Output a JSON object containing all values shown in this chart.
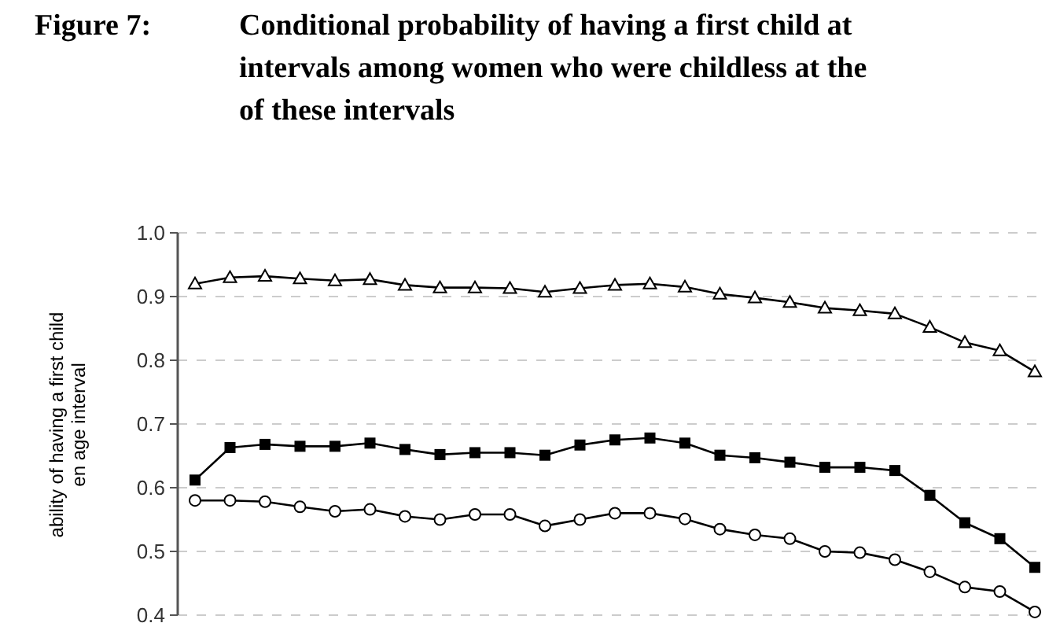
{
  "chart_data": {
    "type": "line",
    "title": "Conditional probability of having a first child at\nintervals among women who were childless at the\nof these intervals",
    "ylabel": "ability of having a first child\nen age interval",
    "annotations": [
      "Figure 7:"
    ],
    "categories": [
      null,
      null,
      null,
      null,
      null,
      null,
      null,
      null,
      null,
      null,
      null,
      null,
      null,
      null,
      null,
      null,
      null,
      null,
      null,
      null,
      null,
      null,
      null,
      null,
      null
    ],
    "ylim": [
      0.4,
      1.0
    ],
    "yticks": [
      {
        "value": 0.4,
        "label": "0.4"
      },
      {
        "value": 0.5,
        "label": "0.5"
      },
      {
        "value": 0.6,
        "label": "0.6"
      },
      {
        "value": 0.7,
        "label": "0.7"
      },
      {
        "value": 0.8,
        "label": "0.8"
      },
      {
        "value": 0.9,
        "label": "0.9"
      },
      {
        "value": 1.0,
        "label": "1.0"
      }
    ],
    "grid": "y",
    "line_style": "solid",
    "series": [
      {
        "color": "#000000",
        "marker": "triangle",
        "values": [
          0.92,
          0.93,
          0.932,
          0.928,
          0.925,
          0.927,
          0.918,
          0.914,
          0.914,
          0.913,
          0.907,
          0.913,
          0.918,
          0.92,
          0.915,
          0.904,
          0.898,
          0.891,
          0.882,
          0.878,
          0.873,
          0.852,
          0.828,
          0.815,
          0.782
        ]
      },
      {
        "color": "#000000",
        "marker": "square",
        "values": [
          0.612,
          0.663,
          0.668,
          0.665,
          0.665,
          0.67,
          0.66,
          0.652,
          0.655,
          0.655,
          0.651,
          0.667,
          0.675,
          0.678,
          0.67,
          0.651,
          0.647,
          0.64,
          0.632,
          0.632,
          0.627,
          0.588,
          0.545,
          0.52,
          0.475
        ]
      },
      {
        "color": "#000000",
        "marker": "circle",
        "values": [
          0.58,
          0.58,
          0.578,
          0.57,
          0.563,
          0.566,
          0.555,
          0.55,
          0.558,
          0.558,
          0.54,
          0.55,
          0.56,
          0.56,
          0.551,
          0.535,
          0.526,
          0.52,
          0.5,
          0.498,
          0.487,
          0.468,
          0.444,
          0.437,
          0.405
        ]
      }
    ]
  }
}
